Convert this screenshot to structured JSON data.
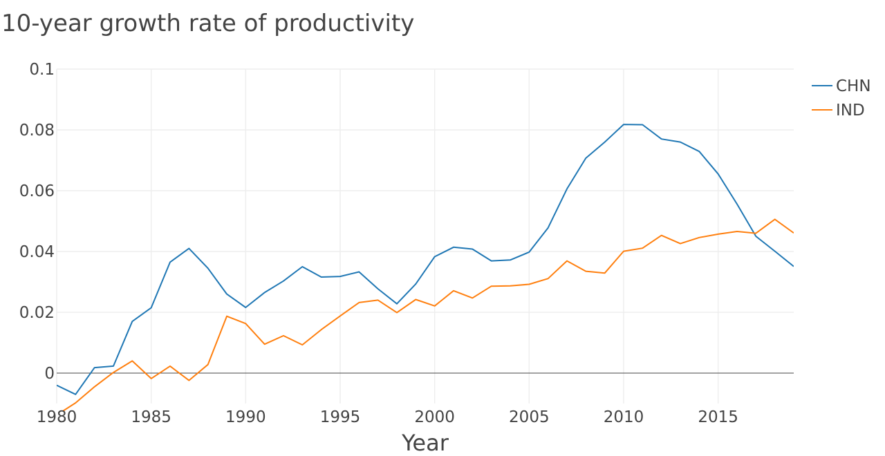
{
  "chart_data": {
    "type": "line",
    "title": "10-year growth rate of productivity",
    "xlabel": "Year",
    "ylabel": "",
    "xlim": [
      1980,
      2019
    ],
    "ylim": [
      -0.01,
      0.1
    ],
    "x_ticks": [
      1980,
      1985,
      1990,
      1995,
      2000,
      2005,
      2010,
      2015
    ],
    "y_ticks": [
      0,
      0.02,
      0.04,
      0.06,
      0.08,
      0.1
    ],
    "y_tick_labels": [
      "0",
      "0.02",
      "0.04",
      "0.06",
      "0.08",
      "0.1"
    ],
    "grid": true,
    "legend_position": "top-right",
    "x": [
      1980,
      1981,
      1982,
      1983,
      1984,
      1985,
      1986,
      1987,
      1988,
      1989,
      1990,
      1991,
      1992,
      1993,
      1994,
      1995,
      1996,
      1997,
      1998,
      1999,
      2000,
      2001,
      2002,
      2003,
      2004,
      2005,
      2006,
      2007,
      2008,
      2009,
      2010,
      2011,
      2012,
      2013,
      2014,
      2015,
      2016,
      2017,
      2018,
      2019
    ],
    "series": [
      {
        "name": "CHN",
        "color": "#1f77b4",
        "values": [
          -0.004,
          -0.007,
          0.0018,
          0.0023,
          0.017,
          0.0215,
          0.0365,
          0.041,
          0.0345,
          0.026,
          0.0216,
          0.0265,
          0.0303,
          0.035,
          0.0316,
          0.0318,
          0.0333,
          0.0277,
          0.0228,
          0.0293,
          0.0383,
          0.0414,
          0.0408,
          0.0369,
          0.0372,
          0.0398,
          0.0478,
          0.0606,
          0.0707,
          0.076,
          0.0818,
          0.0817,
          0.077,
          0.076,
          0.0729,
          0.0655,
          0.0556,
          0.045,
          0.0401,
          0.0351
        ]
      },
      {
        "name": "IND",
        "color": "#ff7f0e",
        "values": [
          -0.0138,
          -0.0098,
          -0.0045,
          0.0002,
          0.004,
          -0.0018,
          0.0023,
          -0.0024,
          0.0028,
          0.0187,
          0.0163,
          0.0095,
          0.0123,
          0.0093,
          0.0143,
          0.0188,
          0.0232,
          0.024,
          0.0199,
          0.0242,
          0.0221,
          0.0271,
          0.0247,
          0.0286,
          0.0287,
          0.0292,
          0.0311,
          0.0369,
          0.0335,
          0.0329,
          0.0401,
          0.0411,
          0.0453,
          0.0426,
          0.0446,
          0.0457,
          0.0466,
          0.046,
          0.0506,
          0.0461
        ]
      }
    ]
  }
}
